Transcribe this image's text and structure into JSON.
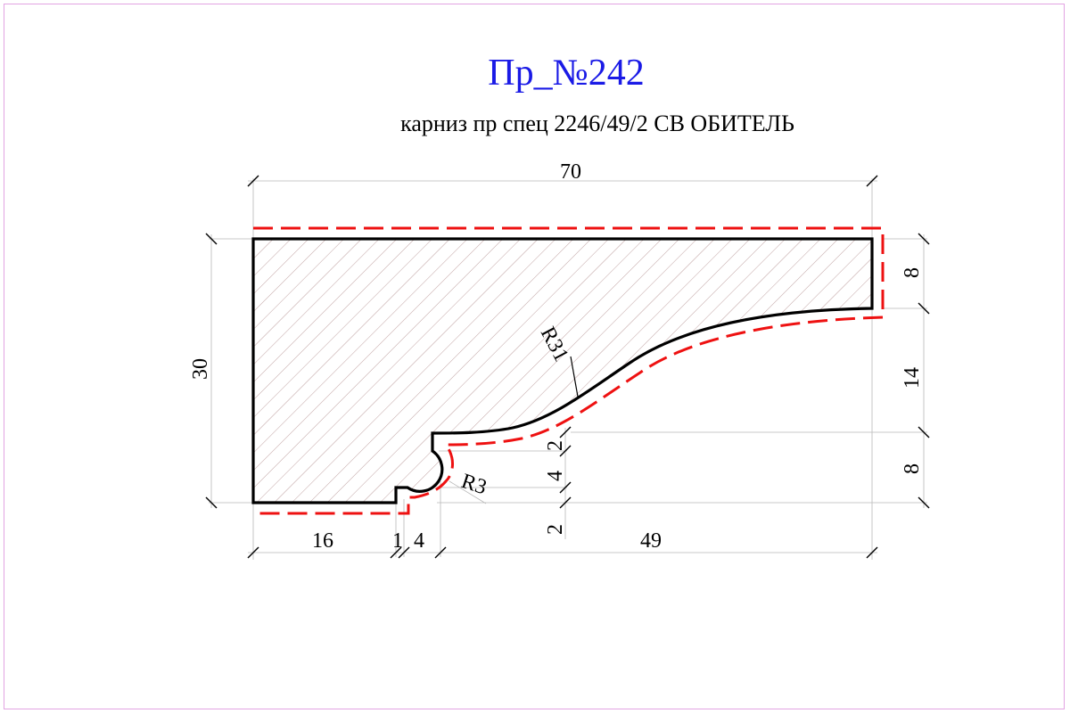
{
  "title": "Пр_№242",
  "subtitle": "карниз пр спец 2246/49/2  СВ ОБИТЕЛЬ",
  "dimensions": {
    "overall_width": "70",
    "overall_height": "30",
    "right_top": "8",
    "right_middle": "14",
    "right_bottom": "8",
    "bottom_left": "16",
    "bottom_step": "1",
    "bottom_cove": "4",
    "bottom_right": "49",
    "inner_top": "2",
    "inner_middle": "4",
    "inner_bottom": "2"
  },
  "radii": {
    "large": "R31",
    "small": "R3"
  },
  "colors": {
    "title": "#1a1ae6",
    "profile_outline": "#000000",
    "offset_line": "#ee1111",
    "hatch": "#b08a8a",
    "frame": "#e2a3e2",
    "dimension_lines": "#aaaaaa"
  }
}
